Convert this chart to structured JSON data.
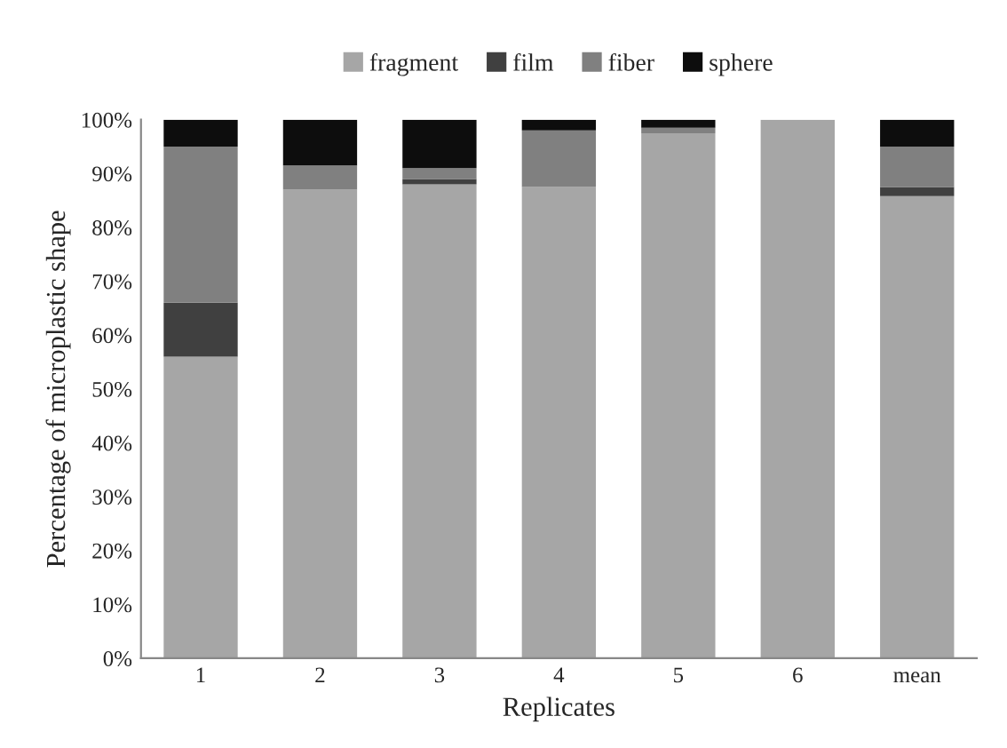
{
  "chart_data": {
    "type": "bar",
    "stacked": true,
    "xlabel": "Replicates",
    "ylabel": "Percentage of microplastic shape",
    "categories": [
      "1",
      "2",
      "3",
      "4",
      "5",
      "6",
      "mean"
    ],
    "series": [
      {
        "name": "fragment",
        "color": "#a6a6a6",
        "values": [
          56,
          87,
          88,
          87.5,
          97.5,
          100,
          85.8
        ]
      },
      {
        "name": "film",
        "color": "#404040",
        "values": [
          10,
          0,
          1,
          0,
          0,
          0,
          1.7
        ]
      },
      {
        "name": "fiber",
        "color": "#808080",
        "values": [
          29,
          4.5,
          2,
          10.5,
          1,
          0,
          7.5
        ]
      },
      {
        "name": "sphere",
        "color": "#0d0d0d",
        "values": [
          5,
          8.5,
          9,
          2,
          1.5,
          0,
          5
        ]
      }
    ],
    "ylim": [
      0,
      100
    ],
    "yticks": [
      {
        "value": 0,
        "label": "0%"
      },
      {
        "value": 10,
        "label": "10%"
      },
      {
        "value": 20,
        "label": "20%"
      },
      {
        "value": 30,
        "label": "30%"
      },
      {
        "value": 40,
        "label": "40%"
      },
      {
        "value": 50,
        "label": "50%"
      },
      {
        "value": 60,
        "label": "60%"
      },
      {
        "value": 70,
        "label": "70%"
      },
      {
        "value": 80,
        "label": "80%"
      },
      {
        "value": 90,
        "label": "90%"
      },
      {
        "value": 100,
        "label": "100%"
      }
    ],
    "legend": "top",
    "grid": false
  }
}
